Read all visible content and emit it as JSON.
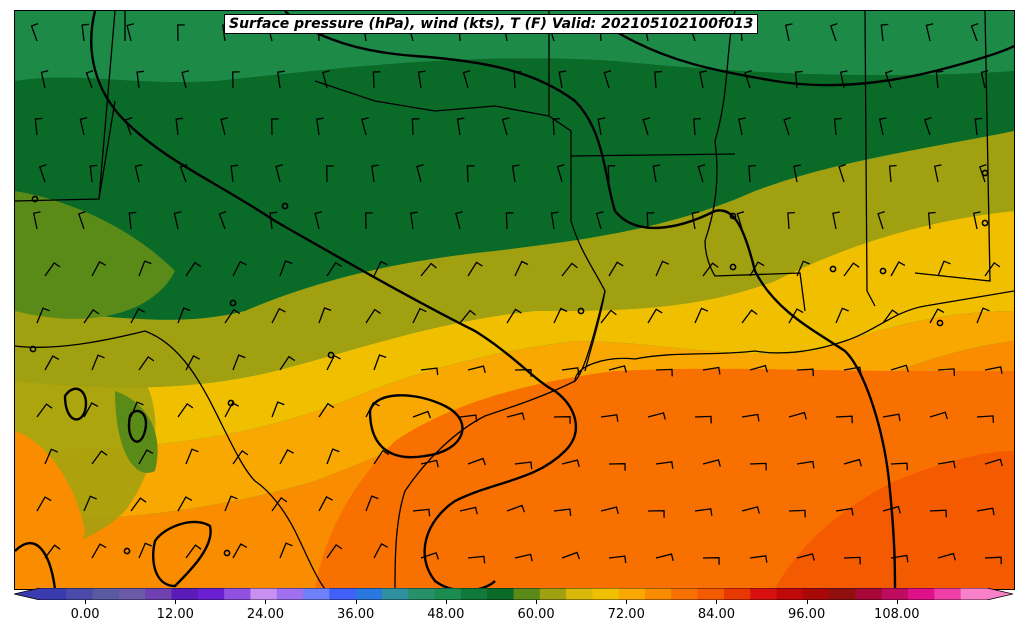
{
  "title": "Surface pressure (hPa), wind (kts), T (F) Valid: 202105102100f013",
  "colorbar": {
    "tick_labels": [
      "0.00",
      "12.00",
      "24.00",
      "36.00",
      "48.00",
      "60.00",
      "72.00",
      "84.00",
      "96.00",
      "108.00"
    ],
    "tick_values": [
      0,
      12,
      24,
      36,
      48,
      60,
      72,
      84,
      96,
      108
    ],
    "min": -6,
    "max": 120,
    "step": 3,
    "colors": [
      "#3b3bb0",
      "#4a4aa8",
      "#5a5aa0",
      "#6a5aa8",
      "#7040b0",
      "#5a1ab8",
      "#6a20d0",
      "#9050e0",
      "#c890f0",
      "#a070f0",
      "#7080f8",
      "#4060f8",
      "#2878e0",
      "#3090a0",
      "#289068",
      "#1a8c50",
      "#117a3a",
      "#0a6a28",
      "#5a8a18",
      "#a0a010",
      "#d8b808",
      "#f0c000",
      "#f8a800",
      "#fa8c00",
      "#f87000",
      "#f45a00",
      "#e83800",
      "#d81010",
      "#c00808",
      "#a80808",
      "#901010",
      "#a80838",
      "#c00c60",
      "#e01088",
      "#f040a8",
      "#f880c8"
    ]
  },
  "map": {
    "fill_colors": {
      "cool_green_dark": "#0a6a28",
      "cool_green": "#1a8c50",
      "green_mid": "#117a3a",
      "olive": "#5a8a18",
      "yellow_olive": "#a0a010",
      "yellow": "#f0c000",
      "orange_light": "#f8a800",
      "orange": "#fa8c00",
      "orange_deep": "#f87000",
      "red_orange": "#f45a00"
    },
    "station_markers": "circle",
    "wind_barbs": "barb"
  }
}
